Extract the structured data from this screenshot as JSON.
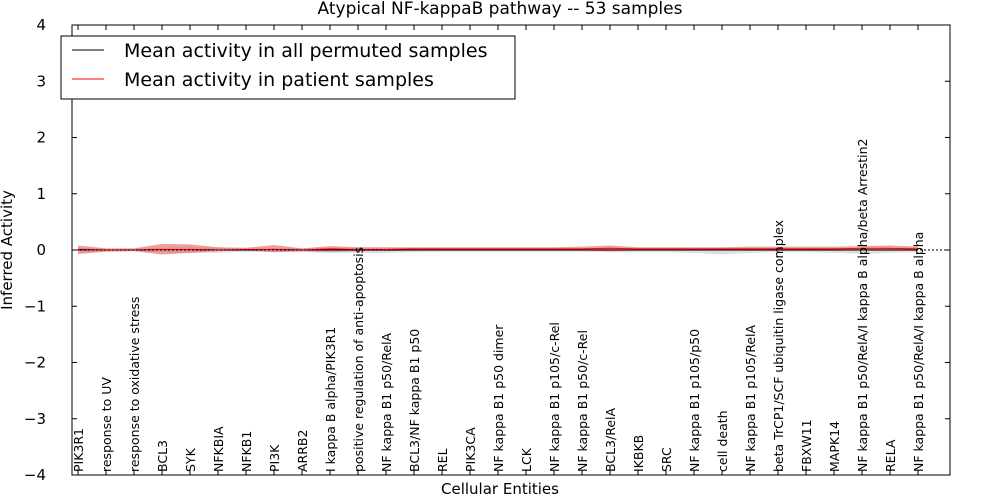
{
  "chart_data": {
    "type": "line",
    "title": "Atypical NF-kappaB pathway -- 53 samples",
    "xlabel": "Cellular Entities",
    "ylabel": "Inferred Activity",
    "ylim": [
      -4,
      4
    ],
    "yticks": [
      4,
      3,
      2,
      1,
      0,
      -1,
      -2,
      -3,
      -4
    ],
    "ytick_labels": [
      "4",
      "3",
      "2",
      "1",
      "0",
      "−1",
      "−2",
      "−3",
      "−4"
    ],
    "legend_location": "top-left",
    "categories": [
      "PIK3R1",
      "response to UV",
      "response to oxidative stress",
      "BCL3",
      "SYK",
      "NFKBIA",
      "NFKB1",
      "PI3K",
      "ARRB2",
      "I kappa B alpha/PIK3R1",
      "positive regulation of anti-apoptosis",
      "NF kappa B1 p50/RelA",
      "BCL3/NF kappa B1 p50",
      "REL",
      "PIK3CA",
      "NF kappa B1 p50 dimer",
      "LCK",
      "NF kappa B1 p105/c-Rel",
      "NF kappa B1 p50/c-Rel",
      "BCL3/RelA",
      "IKBKB",
      "SRC",
      "NF kappa B1 p105/p50",
      "cell death",
      "NF kappa B1 p105/RelA",
      "beta TrCP1/SCF ubiquitin ligase complex",
      "FBXW11",
      "MAPK14",
      "NF kappa B1 p50/RelA/I kappa B alpha/beta Arrestin2",
      "RELA",
      "NF kappa B1 p50/RelA/I kappa B alpha"
    ],
    "series": [
      {
        "name": "Mean activity in all permuted samples",
        "color": "#000000",
        "band_color": "#c8c8d0",
        "values": [
          0.01,
          0.0,
          0.0,
          0.01,
          0.01,
          0.0,
          0.0,
          0.01,
          0.0,
          0.0,
          0.0,
          0.0,
          0.0,
          0.0,
          0.0,
          0.0,
          0.0,
          0.0,
          0.0,
          0.0,
          0.0,
          0.0,
          0.0,
          0.0,
          0.0,
          0.0,
          0.0,
          0.0,
          0.0,
          0.0,
          0.0
        ],
        "lower": [
          -0.04,
          -0.02,
          -0.02,
          -0.04,
          -0.05,
          -0.05,
          -0.03,
          -0.03,
          -0.04,
          -0.05,
          -0.05,
          -0.05,
          -0.04,
          -0.03,
          -0.03,
          -0.03,
          -0.03,
          -0.03,
          -0.03,
          -0.04,
          -0.04,
          -0.04,
          -0.05,
          -0.08,
          -0.05,
          -0.04,
          -0.04,
          -0.05,
          -0.07,
          -0.05,
          -0.04
        ],
        "upper": [
          0.04,
          0.02,
          0.02,
          0.04,
          0.05,
          0.04,
          0.03,
          0.03,
          0.03,
          0.04,
          0.04,
          0.04,
          0.03,
          0.03,
          0.03,
          0.03,
          0.03,
          0.03,
          0.03,
          0.03,
          0.03,
          0.03,
          0.03,
          0.03,
          0.03,
          0.03,
          0.03,
          0.03,
          0.04,
          0.04,
          0.04
        ]
      },
      {
        "name": "Mean activity in patient samples",
        "color": "#ff0000",
        "band_color": "#e05050",
        "values": [
          0.0,
          0.0,
          0.0,
          0.01,
          0.01,
          0.0,
          0.01,
          0.01,
          0.0,
          0.02,
          0.01,
          0.01,
          0.02,
          0.02,
          0.02,
          0.02,
          0.02,
          0.02,
          0.02,
          0.03,
          0.02,
          0.02,
          0.02,
          0.02,
          0.02,
          0.02,
          0.02,
          0.02,
          0.03,
          0.03,
          0.02
        ],
        "lower": [
          -0.07,
          -0.03,
          -0.02,
          -0.08,
          -0.05,
          -0.02,
          -0.01,
          -0.04,
          -0.02,
          -0.03,
          -0.02,
          -0.02,
          -0.01,
          -0.01,
          -0.01,
          -0.01,
          -0.01,
          -0.01,
          -0.01,
          -0.02,
          -0.01,
          -0.01,
          -0.01,
          -0.01,
          -0.01,
          -0.01,
          -0.01,
          -0.01,
          -0.01,
          -0.01,
          -0.01
        ],
        "upper": [
          0.08,
          0.03,
          0.03,
          0.11,
          0.1,
          0.05,
          0.04,
          0.09,
          0.03,
          0.07,
          0.05,
          0.05,
          0.05,
          0.05,
          0.05,
          0.05,
          0.05,
          0.05,
          0.06,
          0.08,
          0.05,
          0.05,
          0.05,
          0.05,
          0.06,
          0.06,
          0.06,
          0.06,
          0.07,
          0.08,
          0.06
        ]
      }
    ]
  }
}
